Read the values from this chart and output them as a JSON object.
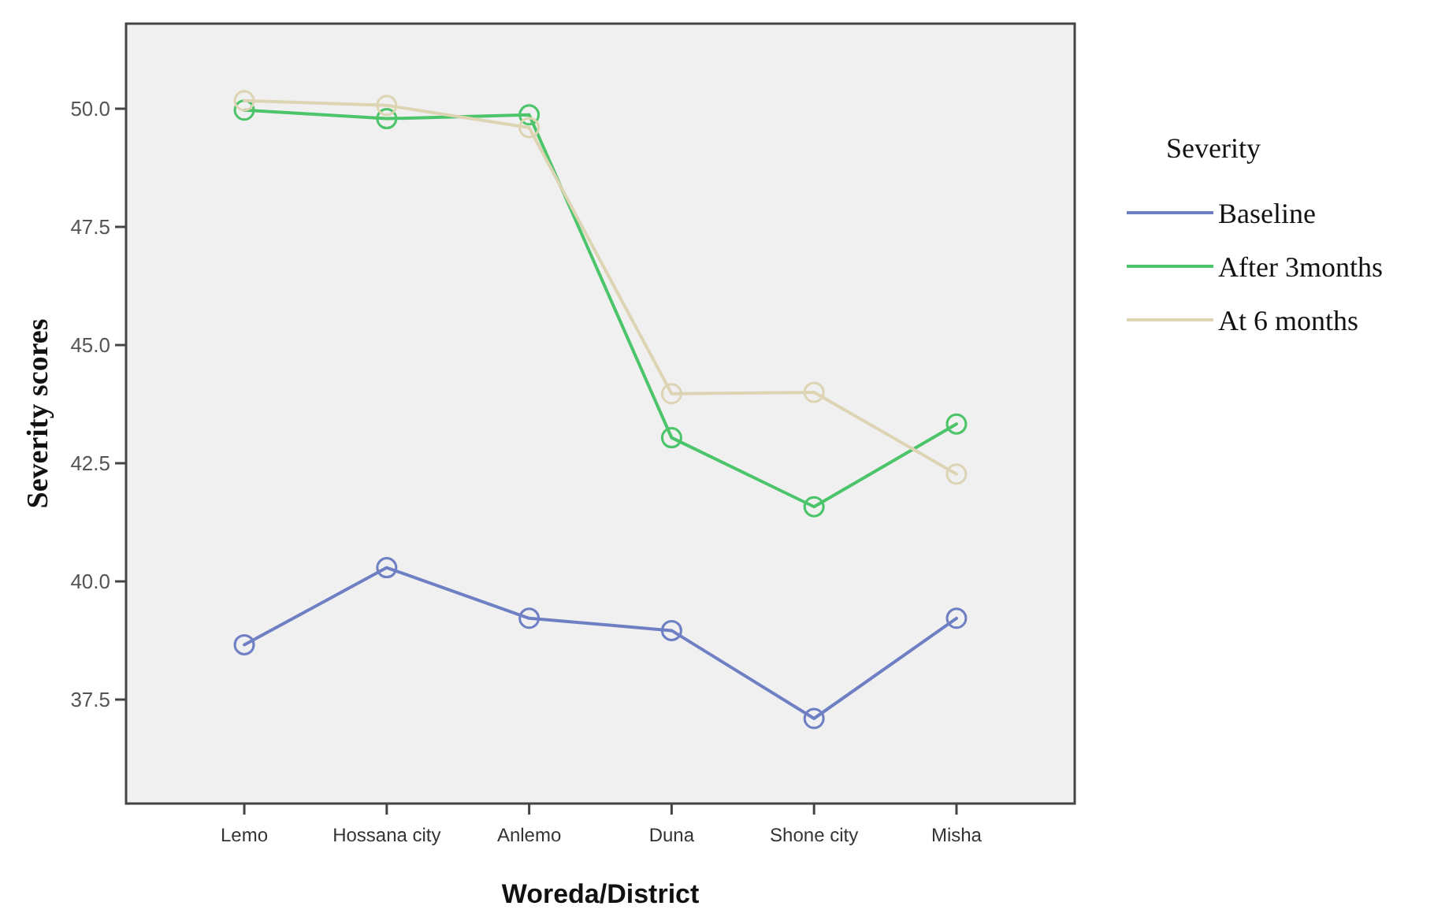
{
  "chart_data": {
    "type": "line",
    "xlabel": "Woreda/District",
    "ylabel": "Severity scores",
    "legend_title": "Severity",
    "categories": [
      "Lemo",
      "Hossana city",
      "Anlemo",
      "Duna",
      "Shone city",
      "Misha"
    ],
    "series": [
      {
        "name": "Baseline",
        "color": "#6f7fc4",
        "values": [
          38.66,
          40.29,
          39.22,
          38.96,
          37.1,
          39.22
        ]
      },
      {
        "name": "After 3months",
        "color": "#4cc46a",
        "values": [
          49.97,
          49.79,
          49.87,
          43.04,
          41.58,
          43.33
        ]
      },
      {
        "name": "At 6 months",
        "color": "#ddd4b4",
        "values": [
          50.17,
          50.07,
          49.6,
          43.97,
          44.0,
          42.27
        ]
      }
    ],
    "ylim": [
      35.3,
      51.8
    ],
    "yticks": [
      {
        "value": 37.5,
        "label": "37.5"
      },
      {
        "value": 40,
        "label": "40.0"
      },
      {
        "value": 42.5,
        "label": "42.5"
      },
      {
        "value": 45,
        "label": "45.0"
      },
      {
        "value": 47.5,
        "label": "47.5"
      },
      {
        "value": 50,
        "label": "50.0"
      }
    ],
    "grid": false,
    "legend": "right",
    "marker": "circle",
    "line_style": "solid"
  }
}
